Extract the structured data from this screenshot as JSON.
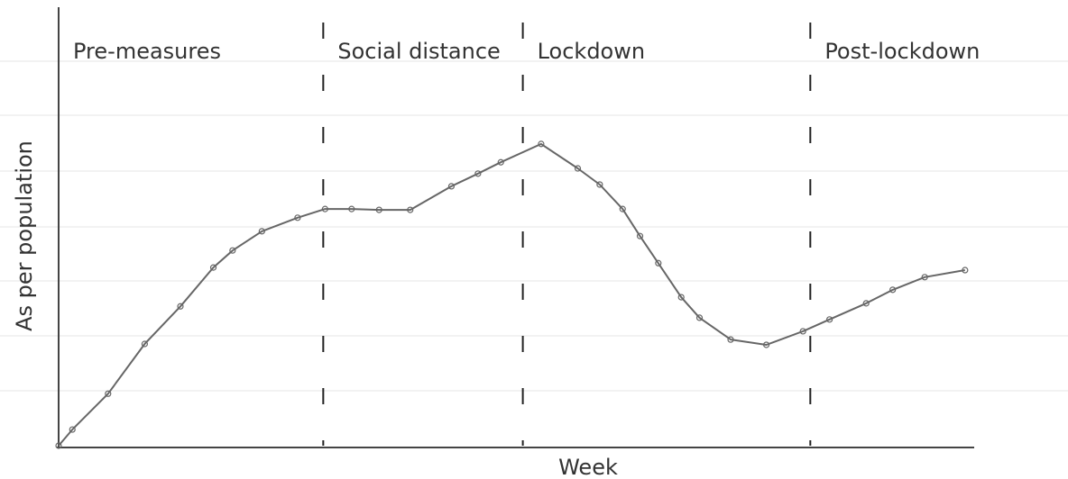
{
  "chart_data": {
    "type": "line",
    "x_label": "Week",
    "y_label": "As per population",
    "phases": [
      "Pre-measures",
      "Social distance",
      "Lockdown",
      "Post-lockdown"
    ],
    "phase_boundaries": [
      28.9,
      50.7,
      82.1
    ],
    "x": [
      0,
      1.5,
      5.4,
      9.4,
      13.3,
      16.9,
      19.0,
      22.2,
      26.1,
      29.1,
      32.0,
      35.0,
      38.4,
      42.9,
      45.8,
      48.3,
      52.7,
      56.7,
      59.1,
      61.6,
      63.5,
      65.5,
      68.0,
      70.0,
      73.4,
      77.3,
      81.3,
      84.2,
      88.2,
      91.1,
      94.6,
      99.0
    ],
    "values": [
      0,
      3.7,
      11.9,
      23.3,
      31.9,
      40.8,
      44.7,
      49.1,
      52.2,
      54.2,
      54.2,
      54.0,
      54.0,
      59.4,
      62.3,
      64.9,
      69.1,
      63.5,
      59.8,
      54.2,
      48.0,
      41.8,
      34.0,
      29.3,
      24.3,
      23.1,
      26.2,
      28.9,
      32.6,
      35.7,
      38.6,
      40.2
    ],
    "color": "#666666",
    "xlim": [
      0,
      100
    ],
    "ylim": [
      0,
      100
    ]
  }
}
